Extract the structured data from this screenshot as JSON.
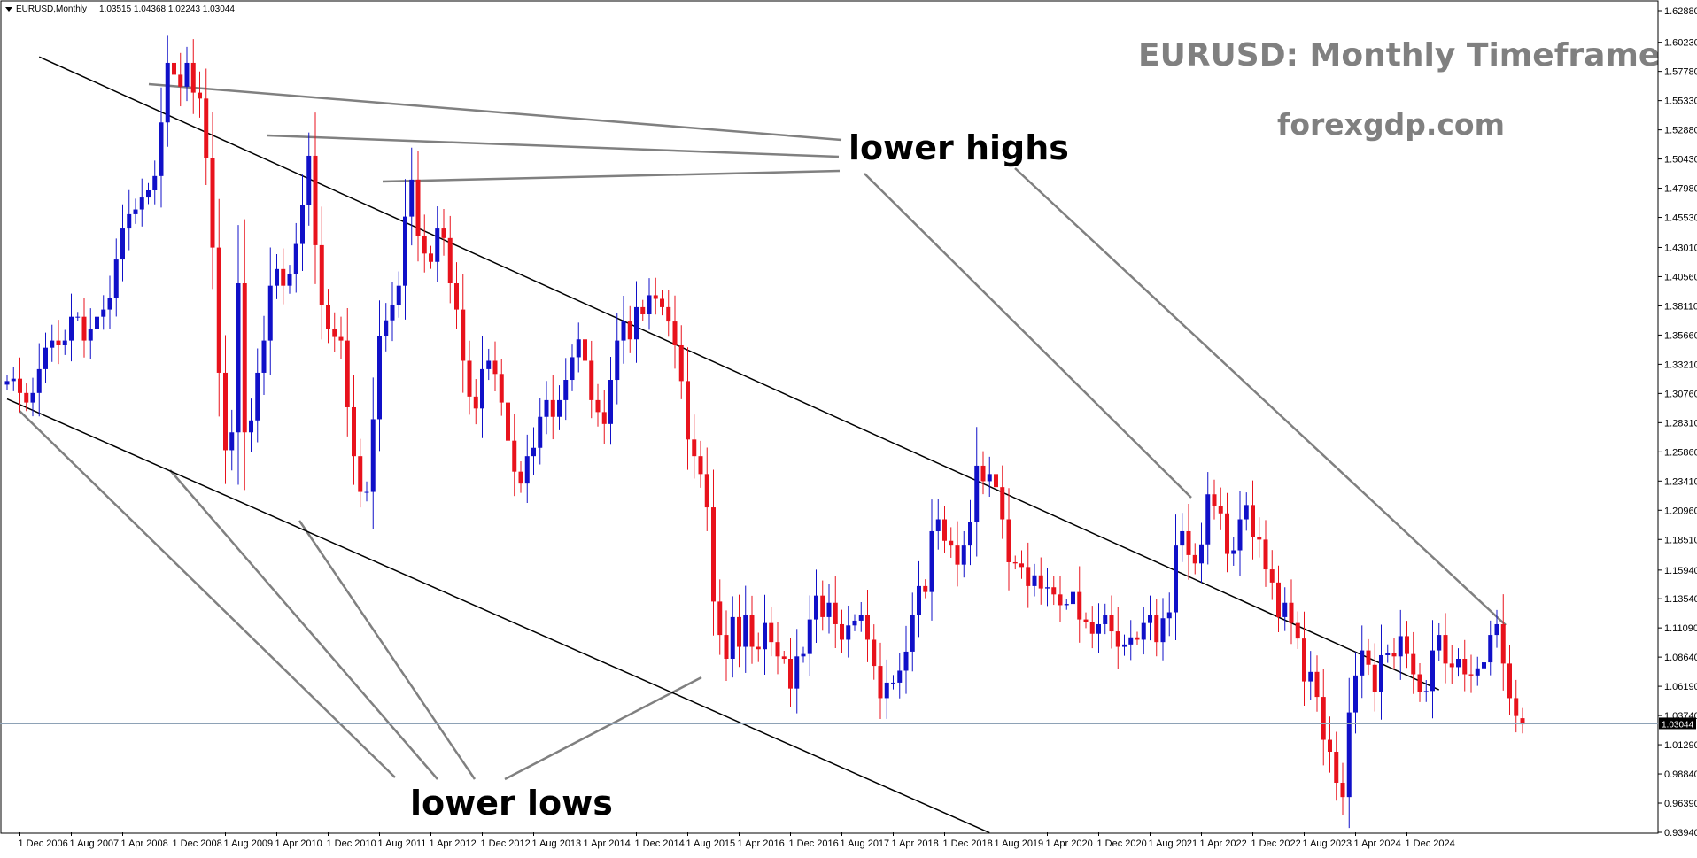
{
  "window": {
    "symbol_header": "EURUSD,Monthly",
    "ohlc_header": "1.03515 1.04368 1.02243 1.03044"
  },
  "annotations": {
    "title": "EURUSD: Monthly Timeframe",
    "source": "forexgdp.com",
    "lower_highs_label": "lower highs",
    "lower_lows_label": "lower lows"
  },
  "chart_data": {
    "type": "candlestick",
    "symbol": "EURUSD",
    "timeframe": "Monthly",
    "header_ohlc": {
      "open": 1.03515,
      "high": 1.04368,
      "low": 1.02243,
      "close": 1.03044
    },
    "current_price_label": "1.03044",
    "current_price": 1.03044,
    "ylim": [
      0.9394,
      1.6288
    ],
    "y_ticks": [
      "1.62880",
      "1.60230",
      "1.57780",
      "1.55330",
      "1.52880",
      "1.50430",
      "1.47980",
      "1.45530",
      "1.43010",
      "1.40560",
      "1.38110",
      "1.35660",
      "1.33210",
      "1.30760",
      "1.28310",
      "1.25860",
      "1.23410",
      "1.20960",
      "1.18510",
      "1.15940",
      "1.13540",
      "1.11090",
      "1.08640",
      "1.06190",
      "1.03740",
      "1.01290",
      "0.98840",
      "0.96390",
      "0.93940"
    ],
    "x_ticks": [
      "1 Dec 2006",
      "1 Aug 2007",
      "1 Apr 2008",
      "1 Dec 2008",
      "1 Aug 2009",
      "1 Apr 2010",
      "1 Dec 2010",
      "1 Aug 2011",
      "1 Apr 2012",
      "1 Dec 2012",
      "1 Aug 2013",
      "1 Apr 2014",
      "1 Dec 2014",
      "1 Aug 2015",
      "1 Apr 2016",
      "1 Dec 2016",
      "1 Aug 2017",
      "1 Apr 2018",
      "1 Dec 2018",
      "1 Aug 2019",
      "1 Apr 2020",
      "1 Dec 2020",
      "1 Aug 2021",
      "1 Apr 2022",
      "1 Dec 2022",
      "1 Aug 2023",
      "1 Apr 2024",
      "1 Dec 2024"
    ],
    "start_month": "2006-10",
    "bullish_color": "#1010c8",
    "bearish_color": "#e8121c",
    "trendline_color": "#000000",
    "annotation_line_color": "#808080",
    "grid": false,
    "trendlines": [
      {
        "name": "upper channel",
        "points": [
          [
            "2007-03",
            1.59
          ],
          [
            "2025-05",
            1.059
          ]
        ]
      },
      {
        "name": "lower channel",
        "points": [
          [
            "2006-10",
            1.303
          ],
          [
            "2019-07",
            0.939
          ]
        ]
      }
    ],
    "monthly_close": [
      1.318,
      1.32,
      1.308,
      1.3,
      1.308,
      1.328,
      1.346,
      1.352,
      1.348,
      1.352,
      1.372,
      1.372,
      1.352,
      1.362,
      1.372,
      1.378,
      1.388,
      1.42,
      1.446,
      1.458,
      1.462,
      1.472,
      1.478,
      1.49,
      1.535,
      1.585,
      1.575,
      1.565,
      1.585,
      1.56,
      1.555,
      1.505,
      1.43,
      1.325,
      1.26,
      1.275,
      1.4,
      1.275,
      1.285,
      1.325,
      1.352,
      1.398,
      1.412,
      1.398,
      1.408,
      1.433,
      1.466,
      1.507,
      1.432,
      1.382,
      1.362,
      1.355,
      1.352,
      1.296,
      1.255,
      1.225,
      1.225,
      1.286,
      1.356,
      1.369,
      1.382,
      1.398,
      1.456,
      1.487,
      1.44,
      1.425,
      1.418,
      1.446,
      1.438,
      1.4,
      1.378,
      1.335,
      1.305,
      1.295,
      1.328,
      1.335,
      1.324,
      1.3,
      1.268,
      1.242,
      1.232,
      1.255,
      1.262,
      1.288,
      1.302,
      1.288,
      1.302,
      1.319,
      1.338,
      1.353,
      1.335,
      1.302,
      1.292,
      1.282,
      1.319,
      1.352,
      1.368,
      1.353,
      1.38,
      1.374,
      1.39,
      1.387,
      1.38,
      1.368,
      1.348,
      1.318,
      1.269,
      1.255,
      1.24,
      1.212,
      1.133,
      1.105,
      1.085,
      1.12,
      1.095,
      1.122,
      1.095,
      1.093,
      1.115,
      1.099,
      1.087,
      1.085,
      1.06,
      1.087,
      1.089,
      1.118,
      1.138,
      1.12,
      1.132,
      1.114,
      1.101,
      1.113,
      1.117,
      1.122,
      1.101,
      1.079,
      1.052,
      1.065,
      1.065,
      1.075,
      1.091,
      1.122,
      1.146,
      1.141,
      1.192,
      1.202,
      1.184,
      1.18,
      1.164,
      1.18,
      1.2,
      1.247,
      1.234,
      1.24,
      1.229,
      1.202,
      1.166,
      1.165,
      1.162,
      1.146,
      1.155,
      1.144,
      1.145,
      1.139,
      1.13,
      1.131,
      1.141,
      1.118,
      1.116,
      1.106,
      1.114,
      1.122,
      1.108,
      1.095,
      1.097,
      1.103,
      1.101,
      1.115,
      1.122,
      1.099,
      1.119,
      1.124,
      1.18,
      1.192,
      1.172,
      1.165,
      1.181,
      1.223,
      1.213,
      1.207,
      1.173,
      1.176,
      1.202,
      1.214,
      1.187,
      1.185,
      1.16,
      1.149,
      1.12,
      1.132,
      1.115,
      1.102,
      1.066,
      1.074,
      1.053,
      1.017,
      1.007,
      0.981,
      0.969,
      1.04,
      1.071,
      1.092,
      1.08,
      1.057,
      1.088,
      1.09,
      1.087,
      1.104,
      1.089,
      1.072,
      1.057,
      1.058,
      1.092,
      1.105,
      1.081,
      1.078,
      1.085,
      1.072,
      1.071,
      1.077,
      1.082,
      1.105,
      1.114,
      1.081,
      1.052,
      1.037,
      1.03
    ],
    "monthly_open_first": 1.315,
    "header_open_last": 1.03515
  }
}
